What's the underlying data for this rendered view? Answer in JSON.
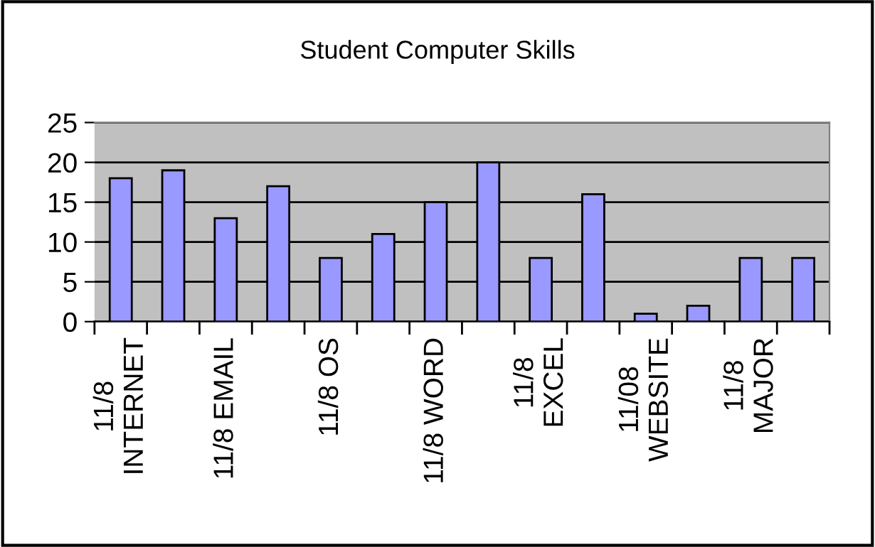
{
  "chart_data": {
    "type": "bar",
    "title": "Student Computer Skills",
    "categories": [
      "11/8\nINTERNET",
      null,
      "11/8 EMAIL",
      null,
      "11/8 OS",
      null,
      "11/8 WORD",
      null,
      "11/8\nEXCEL",
      null,
      "11/08\nWEBSITE",
      null,
      "11/8\nMAJOR",
      null
    ],
    "values": [
      18,
      19,
      13,
      17,
      8,
      11,
      15,
      20,
      8,
      16,
      1,
      2,
      8,
      8
    ],
    "color": "#9999ff",
    "ylim": [
      0,
      25
    ],
    "yticks": [
      0,
      5,
      10,
      15,
      20,
      25
    ],
    "grid": "y"
  }
}
